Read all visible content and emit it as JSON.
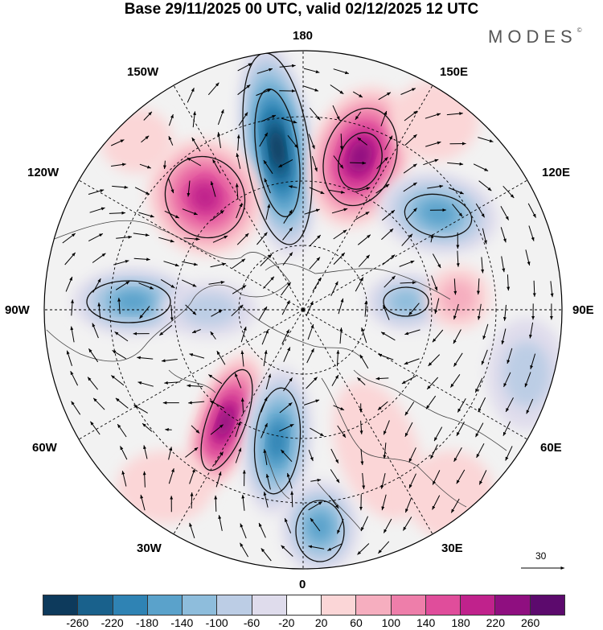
{
  "header": {
    "title": "Base 29/11/2025 00 UTC, valid 02/12/2025 12 UTC",
    "brand": "MODES",
    "brand_mark": "©"
  },
  "map": {
    "projection": "north-polar-stereographic",
    "longitude_labels": {
      "top": "180",
      "upper_left": "150W",
      "upper_right": "150E",
      "left_upper": "120W",
      "right_upper": "120E",
      "left": "90W",
      "right": "90E",
      "left_lower": "60W",
      "right_lower": "60E",
      "lower_left": "30W",
      "lower_right": "30E",
      "bottom": "0"
    },
    "wind_reference_value": "30"
  },
  "colorbar": {
    "tick_labels": [
      "-260",
      "-220",
      "-180",
      "-140",
      "-100",
      "-60",
      "-20",
      "20",
      "60",
      "100",
      "140",
      "180",
      "220",
      "260"
    ],
    "colors": [
      "#0d3a5c",
      "#19618c",
      "#2f83b4",
      "#5aa2cb",
      "#8ebddc",
      "#bccde5",
      "#dfdcec",
      "#ffffff",
      "#fbd6d7",
      "#f6aebf",
      "#ee7eaa",
      "#e04d9b",
      "#c0228c",
      "#8f0f80",
      "#5c0a6d"
    ]
  }
}
